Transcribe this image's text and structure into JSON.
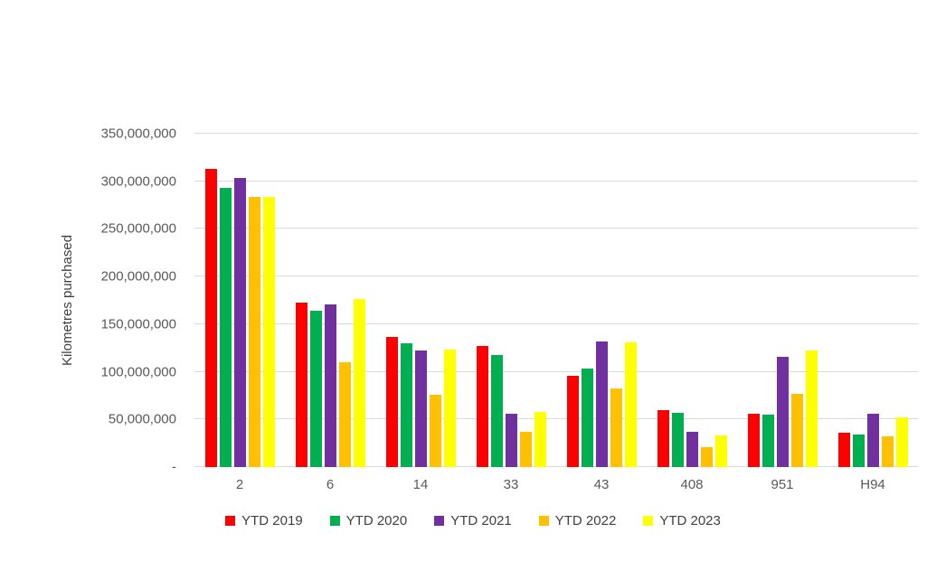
{
  "chart_data": {
    "type": "bar",
    "title": "",
    "xlabel": "",
    "ylabel": "Kilometres purchased",
    "ylim": [
      0,
      350000000
    ],
    "ytick_step": 50000000,
    "ytick_labels": [
      "-",
      "50,000,000",
      "100,000,000",
      "150,000,000",
      "200,000,000",
      "250,000,000",
      "300,000,000",
      "350,000,000"
    ],
    "categories": [
      "2",
      "6",
      "14",
      "33",
      "43",
      "408",
      "951",
      "H94"
    ],
    "series": [
      {
        "name": "YTD 2019",
        "color": "#ff0000",
        "values": [
          313000000,
          173000000,
          137000000,
          127000000,
          96000000,
          60000000,
          56000000,
          36000000
        ]
      },
      {
        "name": "YTD 2020",
        "color": "#00b050",
        "values": [
          293000000,
          164000000,
          130000000,
          118000000,
          103000000,
          57000000,
          55000000,
          34000000
        ]
      },
      {
        "name": "YTD 2021",
        "color": "#7030a0",
        "values": [
          304000000,
          171000000,
          122000000,
          56000000,
          132000000,
          37000000,
          116000000,
          56000000
        ]
      },
      {
        "name": "YTD 2022",
        "color": "#ffc000",
        "values": [
          284000000,
          110000000,
          76000000,
          37000000,
          83000000,
          21000000,
          77000000,
          32000000
        ]
      },
      {
        "name": "YTD 2023",
        "color": "#ffff00",
        "values": [
          284000000,
          176000000,
          123000000,
          58000000,
          131000000,
          33000000,
          122000000,
          52000000
        ]
      }
    ],
    "grid": true,
    "legend_position": "bottom",
    "colors": {
      "gridline": "#d9d9d9",
      "axis_text": "#595959",
      "label_text": "#404040",
      "background": "#ffffff"
    }
  }
}
